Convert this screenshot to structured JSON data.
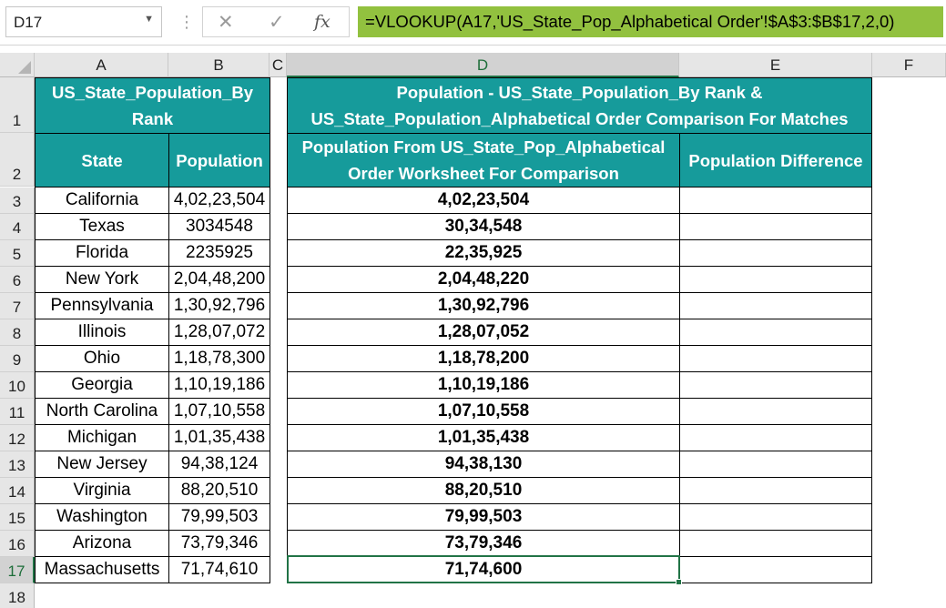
{
  "formula_bar": {
    "name_box": "D17",
    "name_box_dropdown_icon": "chevron-down-icon",
    "cancel_icon": "close-icon",
    "enter_icon": "check-icon",
    "function_icon": "fx-icon",
    "formula": "=VLOOKUP(A17,'US_State_Pop_Alphabetical Order'!$A$3:$B$17,2,0)"
  },
  "columns": [
    "A",
    "B",
    "C",
    "D",
    "E",
    "F"
  ],
  "selected_column": "D",
  "selected_row": "17",
  "header_row1": {
    "a_b": "US_State_Population_By Rank",
    "d_e": "Population - US_State_Population_By Rank & US_State_Population_Alphabetical Order Comparison For Matches"
  },
  "header_row2": {
    "a": "State",
    "b": "Population",
    "d": "Population From US_State_Pop_Alphabetical Order Worksheet For Comparison",
    "e": "Population Difference"
  },
  "rows": [
    {
      "row": "3",
      "state": "California",
      "population": "4,02,23,504",
      "lookup": "4,02,23,504",
      "difference": ""
    },
    {
      "row": "4",
      "state": "Texas",
      "population": "3034548",
      "lookup": "30,34,548",
      "difference": ""
    },
    {
      "row": "5",
      "state": "Florida",
      "population": "2235925",
      "lookup": "22,35,925",
      "difference": ""
    },
    {
      "row": "6",
      "state": "New York",
      "population": "2,04,48,200",
      "lookup": "2,04,48,220",
      "difference": ""
    },
    {
      "row": "7",
      "state": "Pennsylvania",
      "population": "1,30,92,796",
      "lookup": "1,30,92,796",
      "difference": ""
    },
    {
      "row": "8",
      "state": "Illinois",
      "population": "1,28,07,072",
      "lookup": "1,28,07,052",
      "difference": ""
    },
    {
      "row": "9",
      "state": "Ohio",
      "population": "1,18,78,300",
      "lookup": "1,18,78,200",
      "difference": ""
    },
    {
      "row": "10",
      "state": "Georgia",
      "population": "1,10,19,186",
      "lookup": "1,10,19,186",
      "difference": ""
    },
    {
      "row": "11",
      "state": "North Carolina",
      "population": "1,07,10,558",
      "lookup": "1,07,10,558",
      "difference": ""
    },
    {
      "row": "12",
      "state": "Michigan",
      "population": "1,01,35,438",
      "lookup": "1,01,35,438",
      "difference": ""
    },
    {
      "row": "13",
      "state": "New Jersey",
      "population": "94,38,124",
      "lookup": "94,38,130",
      "difference": ""
    },
    {
      "row": "14",
      "state": "Virginia",
      "population": "88,20,510",
      "lookup": "88,20,510",
      "difference": ""
    },
    {
      "row": "15",
      "state": "Washington",
      "population": "79,99,503",
      "lookup": "79,99,503",
      "difference": ""
    },
    {
      "row": "16",
      "state": "Arizona",
      "population": "73,79,346",
      "lookup": "73,79,346",
      "difference": ""
    },
    {
      "row": "17",
      "state": "Massachusetts",
      "population": "71,74,610",
      "lookup": "71,74,600",
      "difference": ""
    }
  ],
  "row_numbers": [
    "1",
    "2",
    "18"
  ],
  "colors": {
    "header_fill": "#169b9b",
    "formula_highlight": "#92c13f",
    "selection": "#217346"
  }
}
